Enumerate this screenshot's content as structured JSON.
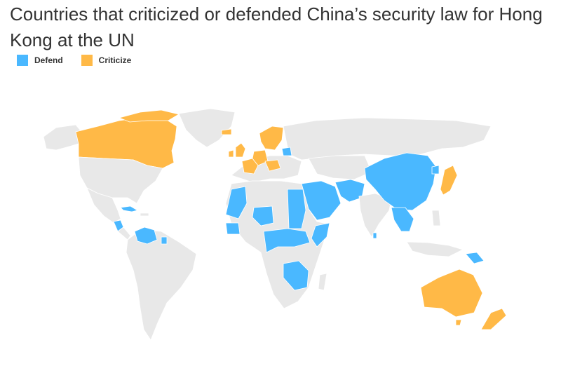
{
  "title": "Countries that criticized or defended China’s security law for Hong Kong at the UN",
  "legend": {
    "defend": "Defend",
    "criticize": "Criticize"
  },
  "colors": {
    "defend": "#4ab8ff",
    "criticize": "#ffb947",
    "neutral": "#e8e8e8"
  }
}
